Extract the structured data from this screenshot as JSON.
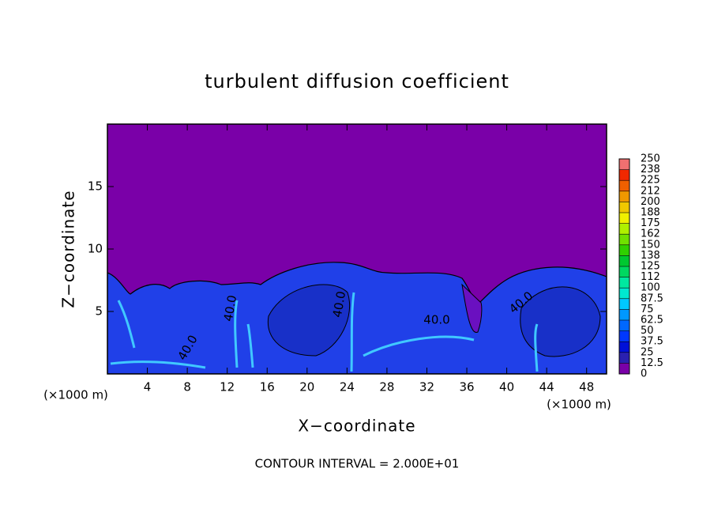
{
  "chart_data": {
    "type": "contour",
    "title": "turbulent diffusion coefficient",
    "x_label": "X−coordinate",
    "y_label": "Z−coordinate",
    "x_unit_left": "(×1000 m)",
    "x_unit_right": "(×1000 m)",
    "note": "CONTOUR INTERVAL = 2.000E+01",
    "xlim": [
      0,
      50
    ],
    "xticks": [
      4,
      8,
      12,
      16,
      20,
      24,
      28,
      32,
      36,
      40,
      44,
      48
    ],
    "ylim": [
      0,
      20
    ],
    "yticks": [
      5,
      10,
      15
    ],
    "contour_labels": [
      "40.0",
      "40.0",
      "40.0",
      "40.0",
      "40.0"
    ],
    "colorbar": {
      "lim": [
        0,
        250
      ],
      "ticks": [
        0,
        12.5,
        25,
        37.5,
        50,
        62.5,
        75,
        87.5,
        100,
        {
          "value": 112.5,
          "label": "112"
        },
        125,
        {
          "value": 137.5,
          "label": "138"
        },
        150,
        {
          "value": 162.5,
          "label": "162"
        },
        175,
        {
          "value": 187.5,
          "label": "188"
        },
        200,
        {
          "value": 212.5,
          "label": "212"
        },
        225,
        {
          "value": 237.5,
          "label": "238"
        },
        250
      ],
      "colors": [
        "#7a00a8",
        "#2a20b0",
        "#0010d8",
        "#0038ff",
        "#0068ff",
        "#0098ff",
        "#00c8ff",
        "#00e8d0",
        "#00e8a0",
        "#00d860",
        "#00c830",
        "#30d000",
        "#70e000",
        "#b0f000",
        "#f0f000",
        "#f0c800",
        "#f09800",
        "#f06000",
        "#f02800",
        "#f07070"
      ]
    }
  }
}
